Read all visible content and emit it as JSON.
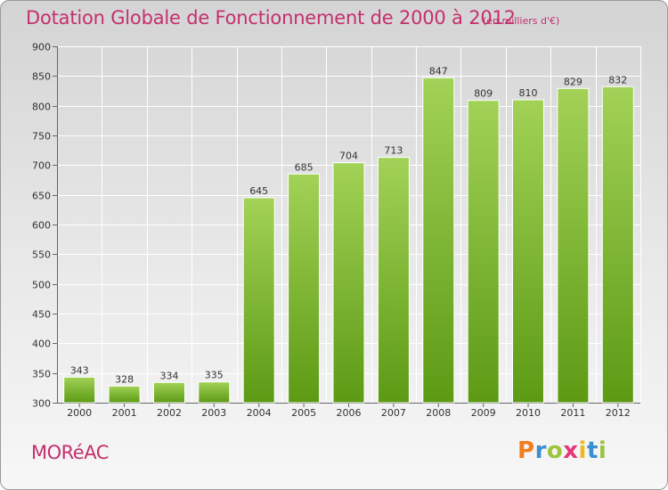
{
  "header": {
    "title": "Dotation Globale de Fonctionnement de 2000 à 2012",
    "unit": "(en milliers d'€)"
  },
  "footer": {
    "commune": "MORéAC",
    "logo_letters": [
      "P",
      "r",
      "o",
      "x",
      "i",
      "t",
      "i"
    ],
    "logo_colors": [
      "#f07d1e",
      "#3a8fd0",
      "#9cc43c",
      "#e8357a",
      "#f0b81e",
      "#3a8fd0",
      "#9cc43c"
    ]
  },
  "colors": {
    "bar_top": "#a2d257",
    "bar_bottom": "#5c9a14",
    "title": "#c4306d"
  },
  "chart_data": {
    "type": "bar",
    "title": "Dotation Globale de Fonctionnement de 2000 à 2012",
    "subtitle": "(en milliers d'€)",
    "categories": [
      "2000",
      "2001",
      "2002",
      "2003",
      "2004",
      "2005",
      "2006",
      "2007",
      "2008",
      "2009",
      "2010",
      "2011",
      "2012"
    ],
    "values": [
      343,
      328,
      334,
      335,
      645,
      685,
      704,
      713,
      847,
      809,
      810,
      829,
      832
    ],
    "ylim": [
      300,
      900
    ],
    "yticks": [
      300,
      350,
      400,
      450,
      500,
      550,
      600,
      650,
      700,
      750,
      800,
      850,
      900
    ],
    "grid": true,
    "data_labels": true
  }
}
